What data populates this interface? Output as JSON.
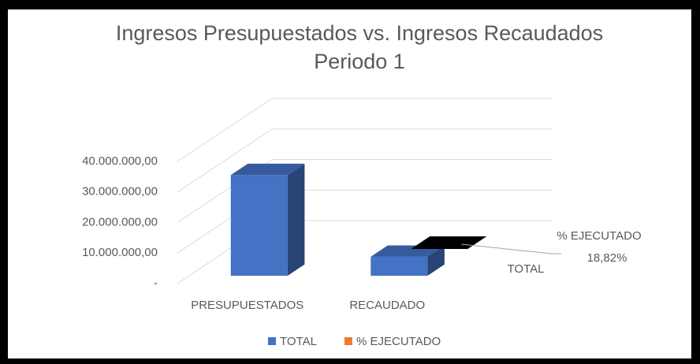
{
  "chart_data": {
    "type": "bar3d",
    "title": "Ingresos Presupuestados vs. Ingresos Recaudados",
    "subtitle": "Periodo 1",
    "categories": [
      "PRESUPUESTADOS",
      "RECAUDADO"
    ],
    "series": [
      {
        "name": "TOTAL",
        "color": "#4472c4",
        "values": [
          33000000,
          6210000
        ]
      },
      {
        "name": "% EJECUTADO",
        "color": "#ed7d31",
        "values": [
          null,
          18.82
        ],
        "value_labels": [
          null,
          "18,82%"
        ]
      }
    ],
    "annotations": [
      "TOTAL"
    ],
    "ylim": [
      0,
      40000000
    ],
    "yticks": [
      {
        "value": 0,
        "label": "-"
      },
      {
        "value": 10000000,
        "label": "10.000.000,00"
      },
      {
        "value": 20000000,
        "label": "20.000.000,00"
      },
      {
        "value": 30000000,
        "label": "30.000.000,00"
      },
      {
        "value": 40000000,
        "label": "40.000.000,00"
      }
    ],
    "grid": true,
    "legend": "bottom"
  }
}
